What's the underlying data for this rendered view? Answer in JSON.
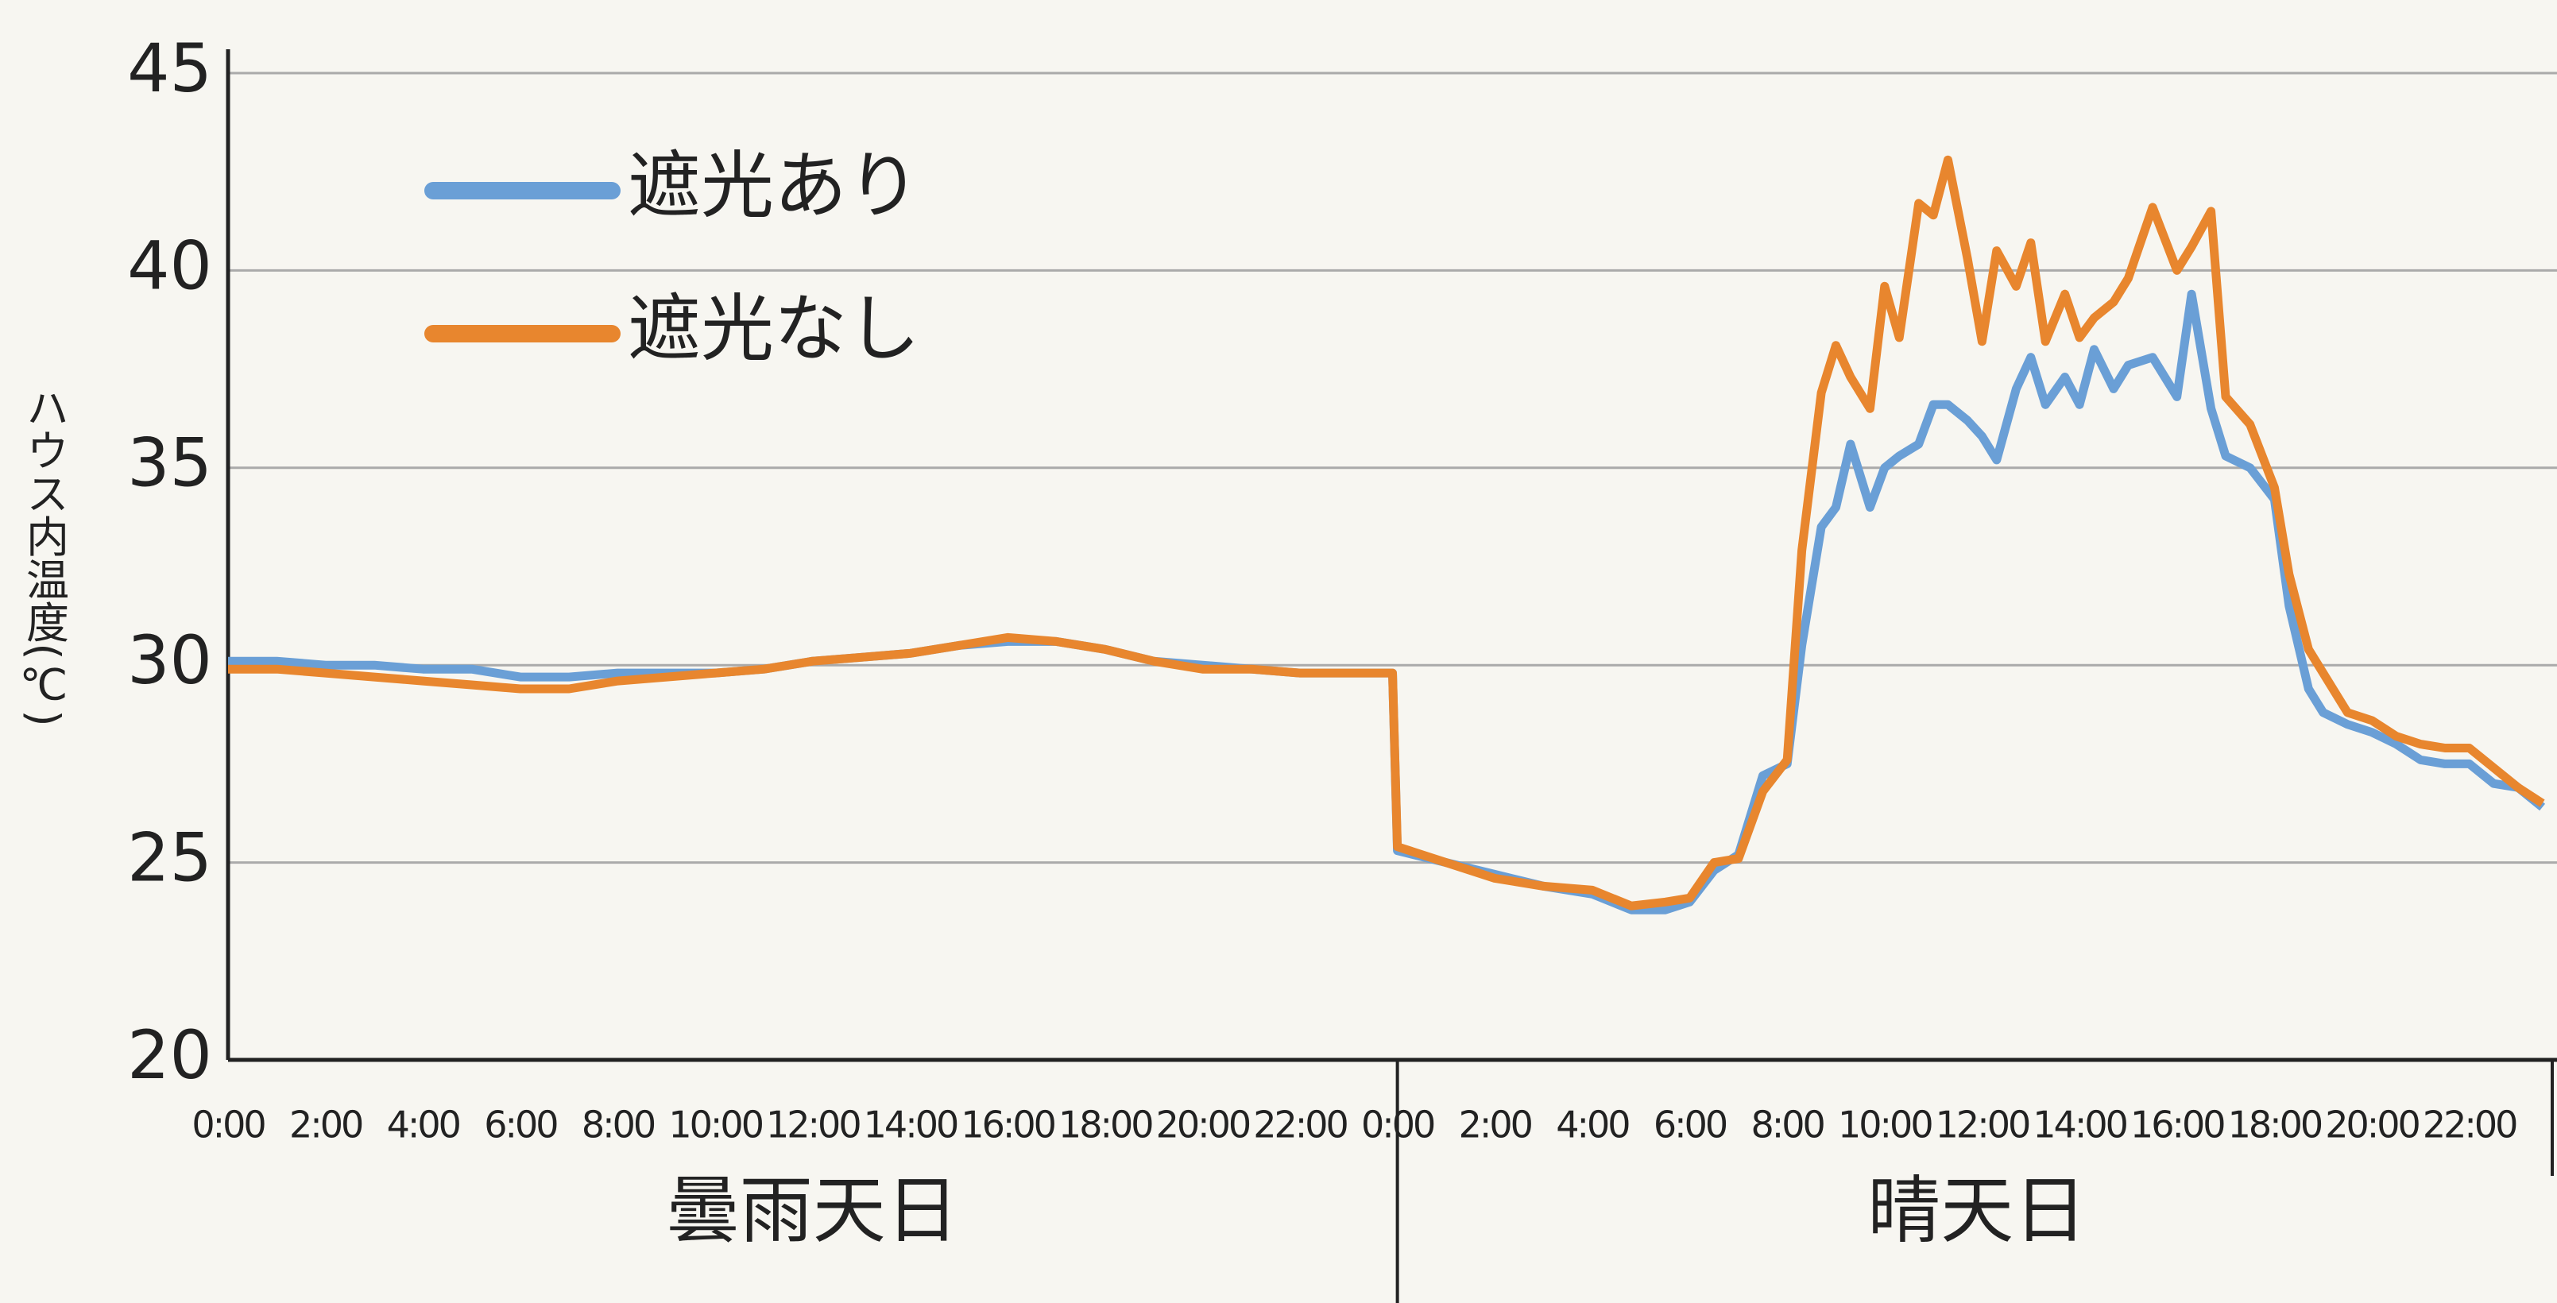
{
  "chart_data": {
    "type": "line",
    "y_label": "ハウス内温度(℃)",
    "day_labels": [
      "曇雨天日",
      "晴天日"
    ],
    "x": [
      0,
      1,
      2,
      3,
      4,
      5,
      6,
      7,
      8,
      9,
      10,
      11,
      12,
      13,
      14,
      15,
      16,
      17,
      18,
      19,
      20,
      21,
      22,
      23,
      23.9,
      24,
      25,
      26,
      27,
      28,
      28.8,
      29.5,
      30,
      30.5,
      31,
      31.5,
      32,
      32.3,
      32.7,
      33,
      33.3,
      33.7,
      34,
      34.3,
      34.7,
      35,
      35.3,
      35.7,
      36,
      36.3,
      36.7,
      37,
      37.3,
      37.7,
      38,
      38.3,
      38.7,
      39,
      39.5,
      40,
      40.3,
      40.7,
      41,
      41.5,
      42,
      42.3,
      42.7,
      43,
      43.5,
      44,
      44.5,
      45,
      45.5,
      46,
      46.5,
      47,
      47.5
    ],
    "series": [
      {
        "name": "遮光あり",
        "color": "#6a9fd6",
        "values": [
          30.1,
          30.1,
          30.0,
          30.0,
          29.9,
          29.9,
          29.7,
          29.7,
          29.8,
          29.8,
          29.8,
          29.9,
          30.1,
          30.2,
          30.3,
          30.5,
          30.6,
          30.6,
          30.4,
          30.1,
          30.0,
          29.9,
          29.8,
          29.8,
          29.8,
          25.3,
          25.0,
          24.7,
          24.4,
          24.2,
          23.8,
          23.8,
          24.0,
          24.8,
          25.2,
          27.2,
          27.5,
          30.5,
          33.5,
          34.0,
          35.6,
          34.0,
          35.0,
          35.3,
          35.6,
          36.6,
          36.6,
          36.2,
          35.8,
          35.2,
          37.0,
          37.8,
          36.6,
          37.3,
          36.6,
          38.0,
          37.0,
          37.6,
          37.8,
          36.8,
          39.4,
          36.5,
          35.3,
          35.0,
          34.2,
          31.5,
          29.4,
          28.8,
          28.5,
          28.3,
          28.0,
          27.6,
          27.5,
          27.5,
          27.0,
          26.9,
          26.4
        ]
      },
      {
        "name": "遮光なし",
        "color": "#e8862e",
        "values": [
          29.9,
          29.9,
          29.8,
          29.7,
          29.6,
          29.5,
          29.4,
          29.4,
          29.6,
          29.7,
          29.8,
          29.9,
          30.1,
          30.2,
          30.3,
          30.5,
          30.7,
          30.6,
          30.4,
          30.1,
          29.9,
          29.9,
          29.8,
          29.8,
          29.8,
          25.4,
          25.0,
          24.6,
          24.4,
          24.3,
          23.9,
          24.0,
          24.1,
          25.0,
          25.1,
          26.8,
          27.6,
          32.9,
          36.9,
          38.1,
          37.3,
          36.5,
          39.6,
          38.3,
          41.7,
          41.4,
          42.8,
          40.3,
          38.2,
          40.5,
          39.6,
          40.7,
          38.2,
          39.4,
          38.3,
          38.8,
          39.2,
          39.8,
          41.6,
          40.0,
          40.6,
          41.5,
          36.8,
          36.1,
          34.5,
          32.3,
          30.4,
          29.8,
          28.8,
          28.6,
          28.2,
          28.0,
          27.9,
          27.9,
          27.4,
          26.9,
          26.5
        ]
      }
    ],
    "xlim": [
      0,
      47.8
    ],
    "xticks": [
      {
        "value": 0,
        "label": "0:00"
      },
      {
        "value": 2,
        "label": "2:00"
      },
      {
        "value": 4,
        "label": "4:00"
      },
      {
        "value": 6,
        "label": "6:00"
      },
      {
        "value": 8,
        "label": "8:00"
      },
      {
        "value": 10,
        "label": "10:00"
      },
      {
        "value": 12,
        "label": "12:00"
      },
      {
        "value": 14,
        "label": "14:00"
      },
      {
        "value": 16,
        "label": "16:00"
      },
      {
        "value": 18,
        "label": "18:00"
      },
      {
        "value": 20,
        "label": "20:00"
      },
      {
        "value": 22,
        "label": "22:00"
      },
      {
        "value": 24,
        "label": "0:00"
      },
      {
        "value": 26,
        "label": "2:00"
      },
      {
        "value": 28,
        "label": "4:00"
      },
      {
        "value": 30,
        "label": "6:00"
      },
      {
        "value": 32,
        "label": "8:00"
      },
      {
        "value": 34,
        "label": "10:00"
      },
      {
        "value": 36,
        "label": "12:00"
      },
      {
        "value": 38,
        "label": "14:00"
      },
      {
        "value": 40,
        "label": "16:00"
      },
      {
        "value": 42,
        "label": "18:00"
      },
      {
        "value": 44,
        "label": "20:00"
      },
      {
        "value": 46,
        "label": "22:00"
      }
    ],
    "ylim": [
      20,
      45
    ],
    "yticks": [
      20,
      25,
      30,
      35,
      40,
      45
    ],
    "grid": true
  }
}
